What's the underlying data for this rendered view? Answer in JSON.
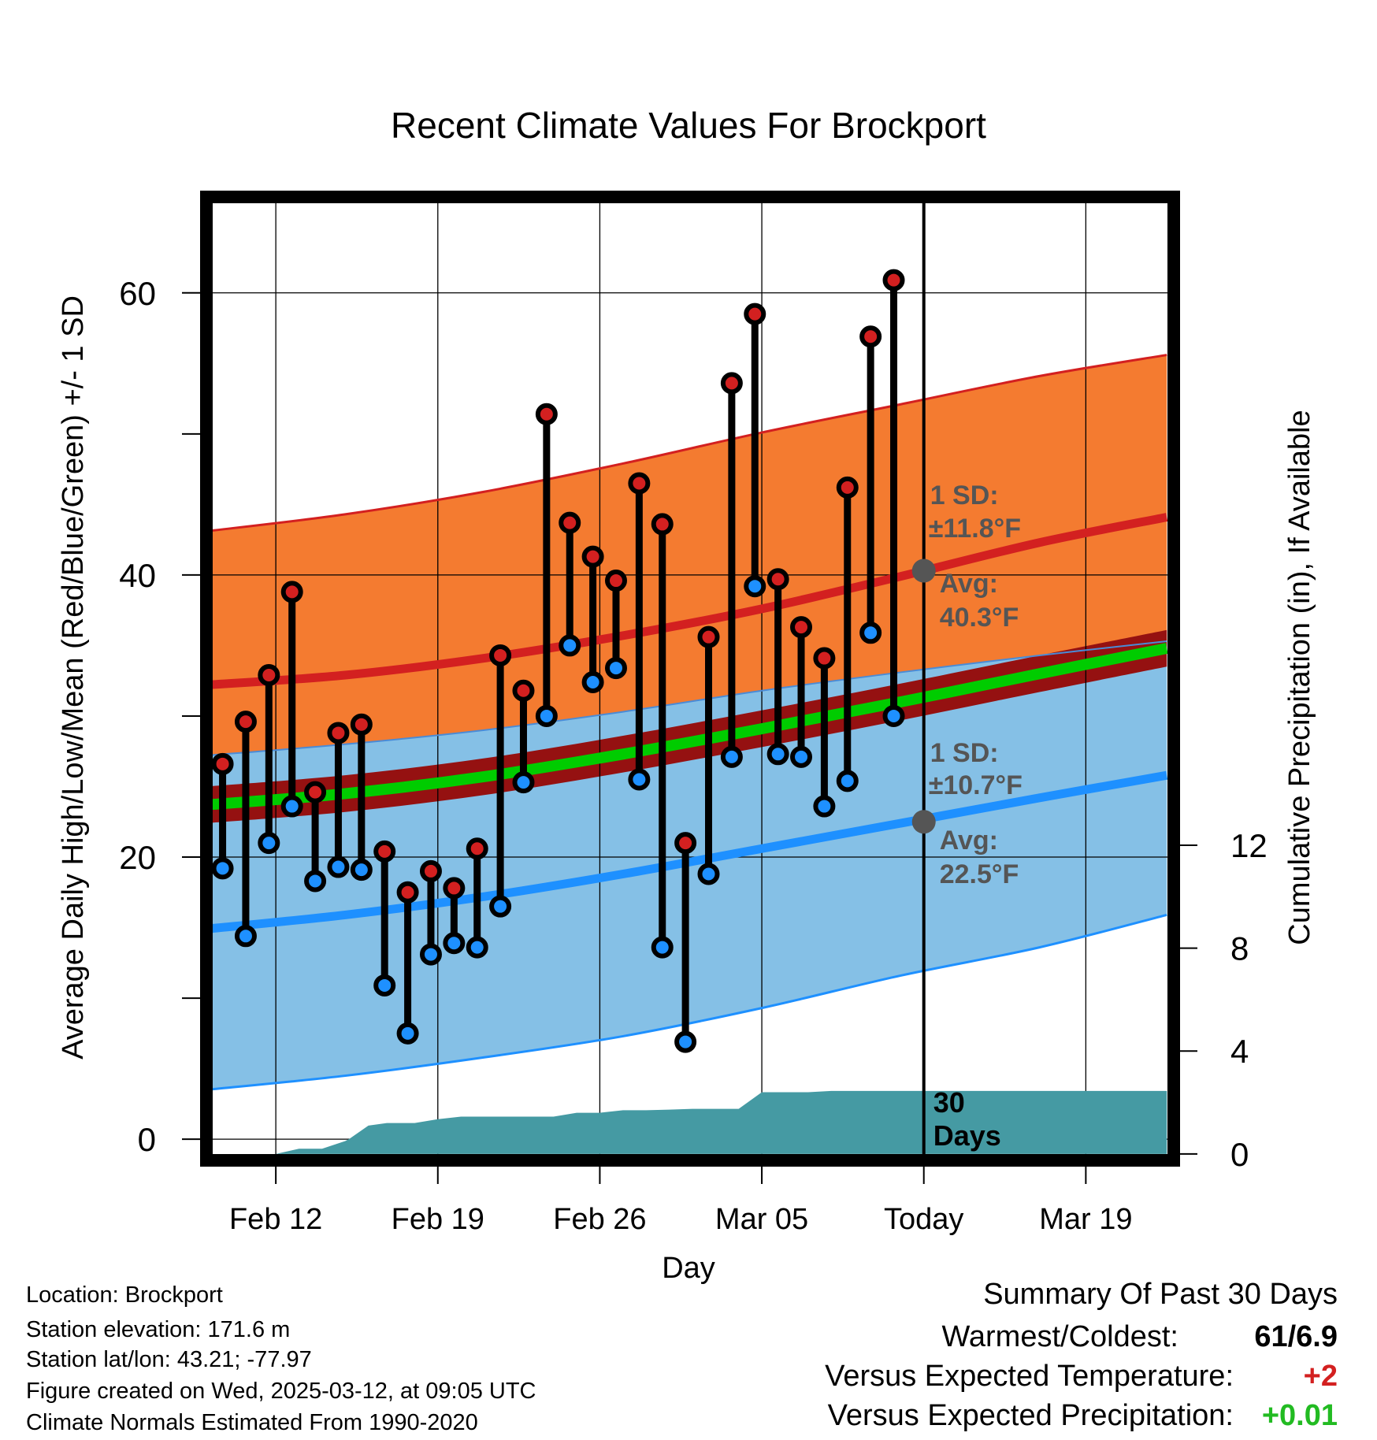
{
  "chart_data": {
    "type": "line",
    "title": "Recent Climate Values For Brockport",
    "xlabel": "Day",
    "ylabel": "Average Daily High/Low/Mean (Red/Blue/Green) +/- 1 SD",
    "y2label": "Cumulative Precipitation (in), If Available",
    "xlim": [
      0,
      41.8
    ],
    "ylim": [
      -1.5,
      66.8
    ],
    "y2lim": [
      -0.25,
      37.2
    ],
    "x_ticks": [
      {
        "x": 3,
        "label": "Feb 12"
      },
      {
        "x": 10,
        "label": "Feb 19"
      },
      {
        "x": 17,
        "label": "Feb 26"
      },
      {
        "x": 24,
        "label": "Mar 05"
      },
      {
        "x": 31,
        "label": "Today"
      },
      {
        "x": 38,
        "label": "Mar 19"
      }
    ],
    "y_ticks_labeled": [
      "0",
      "20",
      "40",
      "60"
    ],
    "y_tick_values": [
      0,
      10,
      20,
      30,
      40,
      50,
      60
    ],
    "y2_ticks": [
      "0",
      "4",
      "8",
      "12"
    ],
    "y2_tick_values": [
      0,
      4,
      8,
      12
    ],
    "grid": true,
    "today_x": 31,
    "today_label": "30\nDays",
    "normals": {
      "x": [
        0,
        6,
        12,
        18,
        24,
        30,
        36,
        41.5
      ],
      "high_mean": [
        32.2,
        32.9,
        34.1,
        35.7,
        37.6,
        39.9,
        42.3,
        44.1
      ],
      "high_upper": [
        43.1,
        44.3,
        45.9,
        47.9,
        50.1,
        52.1,
        54.1,
        55.6
      ],
      "high_lower": [
        27.2,
        28.0,
        29.0,
        30.3,
        31.8,
        33.1,
        34.3,
        35.3
      ],
      "low_mean": [
        14.9,
        15.9,
        17.2,
        18.8,
        20.6,
        22.4,
        24.2,
        25.8
      ],
      "low_upper": [
        27.2,
        28.0,
        29.0,
        30.3,
        31.8,
        33.1,
        34.3,
        35.3
      ],
      "low_lower": [
        3.5,
        4.5,
        5.8,
        7.3,
        9.3,
        11.6,
        13.6,
        15.9
      ],
      "avg_mean": [
        23.7,
        24.5,
        25.7,
        27.3,
        29.1,
        31.0,
        33.0,
        34.8
      ],
      "avg_upper": [
        25.0,
        25.8,
        27.0,
        28.6,
        30.4,
        32.3,
        34.3,
        36.1
      ],
      "avg_lower": [
        22.4,
        23.2,
        24.4,
        26.0,
        27.8,
        29.7,
        31.7,
        33.5
      ]
    },
    "series": [
      {
        "name": "High",
        "color": "#d32020",
        "x": [
          0.7,
          1.7,
          2.7,
          3.7,
          4.7,
          5.7,
          6.7,
          7.7,
          8.7,
          9.7,
          10.7,
          11.7,
          12.7,
          13.7,
          14.7,
          15.7,
          16.7,
          17.7,
          18.7,
          19.7,
          20.7,
          21.7,
          22.7,
          23.7,
          24.7,
          25.7,
          26.7,
          27.7,
          28.7,
          29.7
        ],
        "values": [
          26.6,
          29.6,
          32.9,
          38.8,
          24.6,
          28.8,
          29.4,
          20.4,
          17.5,
          19.0,
          17.8,
          20.6,
          34.3,
          31.8,
          51.4,
          43.7,
          41.3,
          39.6,
          46.5,
          43.6,
          21.0,
          35.6,
          53.6,
          58.5,
          39.7,
          36.3,
          34.1,
          46.2,
          56.9,
          60.9
        ]
      },
      {
        "name": "Low",
        "color": "#1e90ff",
        "x": [
          0.7,
          1.7,
          2.7,
          3.7,
          4.7,
          5.7,
          6.7,
          7.7,
          8.7,
          9.7,
          10.7,
          11.7,
          12.7,
          13.7,
          14.7,
          15.7,
          16.7,
          17.7,
          18.7,
          19.7,
          20.7,
          21.7,
          22.7,
          23.7,
          24.7,
          25.7,
          26.7,
          27.7,
          28.7,
          29.7
        ],
        "values": [
          19.2,
          14.4,
          21.0,
          23.6,
          18.3,
          19.3,
          19.1,
          10.9,
          7.5,
          13.1,
          13.9,
          13.6,
          16.5,
          25.3,
          30.0,
          35.0,
          32.4,
          33.4,
          25.5,
          13.6,
          6.9,
          18.8,
          27.1,
          39.2,
          27.3,
          27.1,
          23.6,
          25.4,
          35.9,
          30.0
        ]
      }
    ],
    "precip": {
      "name": "Cumulative Precipitation",
      "color": "#459aa3",
      "x": [
        3,
        4,
        5,
        6,
        6.2,
        7,
        7.8,
        8,
        9,
        10,
        11,
        12,
        13,
        14,
        15,
        16,
        17,
        18,
        19,
        20,
        21,
        22,
        23,
        24,
        25,
        26,
        27,
        28,
        29,
        30,
        31,
        41.5
      ],
      "values": [
        0,
        0.2,
        0.2,
        0.5,
        0.6,
        1.1,
        1.2,
        1.2,
        1.2,
        1.35,
        1.45,
        1.45,
        1.45,
        1.45,
        1.45,
        1.6,
        1.6,
        1.7,
        1.7,
        1.72,
        1.75,
        1.75,
        1.75,
        2.4,
        2.4,
        2.4,
        2.45,
        2.45,
        2.45,
        2.45,
        2.45,
        2.45
      ]
    },
    "annotations": {
      "high_sd": "1 SD:",
      "high_sd_value": "±11.8°F",
      "high_avg": "Avg:",
      "high_avg_value": "40.3°F",
      "high_avg_marker": 40.3,
      "low_sd": "1 SD:",
      "low_sd_value": "±10.7°F",
      "low_avg": "Avg:",
      "low_avg_value": "22.5°F",
      "low_avg_marker": 22.5
    },
    "colors": {
      "high_band": "#f47b30",
      "high_line": "#d32020",
      "low_band": "#85c0e6",
      "low_line": "#1e90ff",
      "avg_band": "#951111",
      "avg_line": "#00cc00",
      "annotation": "#555555"
    }
  },
  "footer": {
    "location": "Location: Brockport",
    "elevation": "Station elevation: 171.6 m",
    "latlon": "Station lat/lon: 43.21; -77.97",
    "created": "Figure created on Wed, 2025-03-12, at 09:05 UTC",
    "normals": "Climate Normals Estimated From 1990-2020"
  },
  "summary": {
    "title": "Summary Of Past 30 Days",
    "warmest_label": "Warmest/Coldest:",
    "warmest_value": "61/6.9",
    "temp_label": "Versus Expected Temperature:",
    "temp_value": "+2",
    "temp_color": "#d32020",
    "precip_label": "Versus Expected Precipitation:",
    "precip_value": "+0.01",
    "precip_color": "#22bb22"
  }
}
